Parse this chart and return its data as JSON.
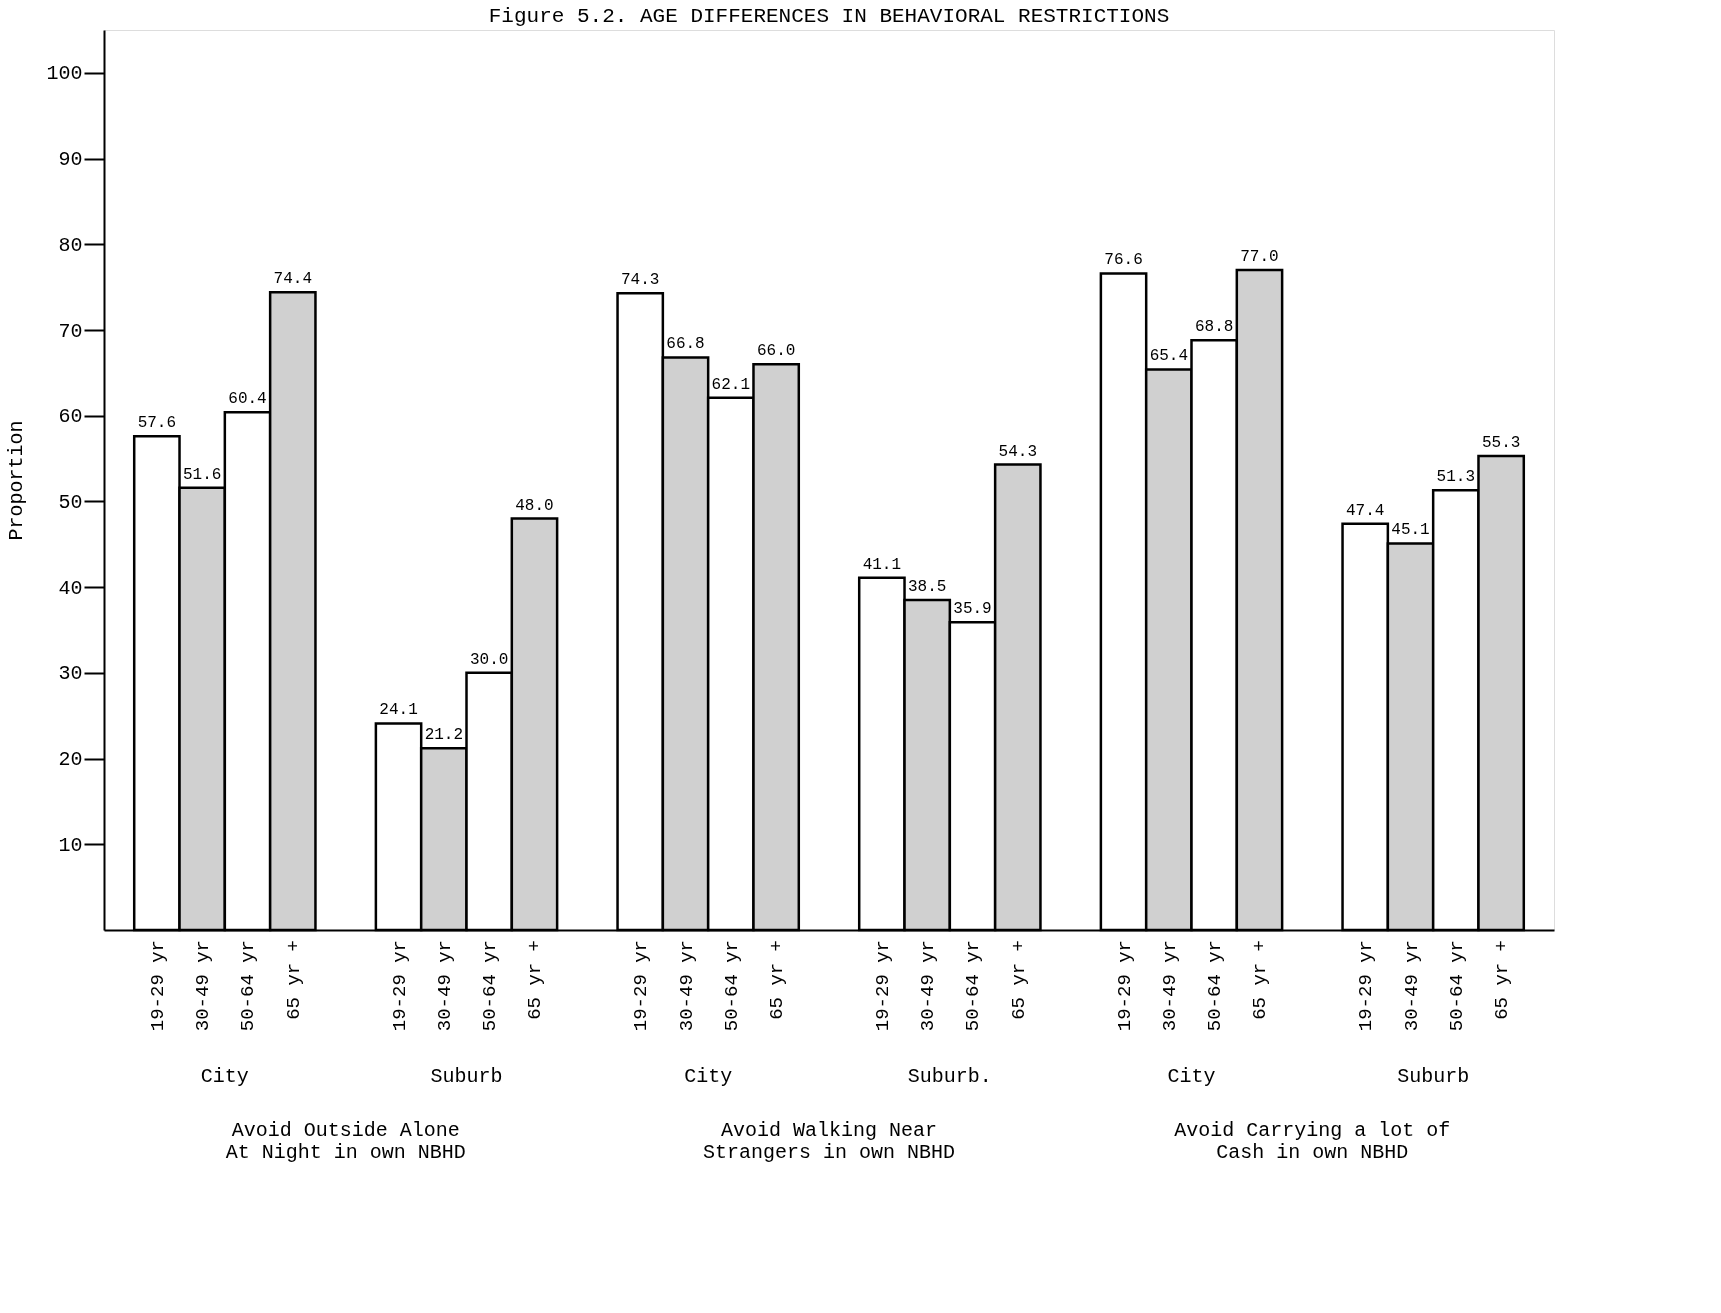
{
  "chart_data": {
    "type": "bar",
    "title": "Figure 5.2. AGE DIFFERENCES IN BEHAVIORAL RESTRICTIONS",
    "ylabel": "Proportion",
    "categories": [
      "City",
      "Suburb",
      "City",
      "Suburb.",
      "City",
      "Suburb"
    ],
    "series": [
      {
        "name": "19-29 yr",
        "color": "#ffffff",
        "values": [
          57.6,
          24.1,
          74.3,
          41.1,
          76.6,
          47.4
        ],
        "value_labels": [
          "57.6",
          "24.1",
          "74.3",
          "41.1",
          "76.6",
          "47.4"
        ]
      },
      {
        "name": "30-49 yr",
        "color": "#d0d0d0",
        "values": [
          51.6,
          21.2,
          66.8,
          38.5,
          65.4,
          45.1
        ],
        "value_labels": [
          "51.6",
          "21.2",
          "66.8",
          "38.5",
          "65.4",
          "45.1"
        ]
      },
      {
        "name": "50-64 yr",
        "color": "#ffffff",
        "values": [
          60.4,
          30.0,
          62.1,
          35.9,
          68.8,
          51.3
        ],
        "value_labels": [
          "60.4",
          "30.0",
          "62.1",
          "35.9",
          "68.8",
          "51.3"
        ]
      },
      {
        "name": "65 yr +",
        "color": "#d0d0d0",
        "values": [
          74.4,
          48.0,
          66.0,
          54.3,
          77.0,
          55.3
        ],
        "value_labels": [
          "74.4",
          "48.0",
          "66.0",
          "54.3",
          "77.0",
          "55.3"
        ]
      }
    ],
    "ylim": [
      0,
      105
    ],
    "yticks": [
      10,
      20,
      30,
      40,
      50,
      60,
      70,
      80,
      90,
      100
    ],
    "grid": false,
    "annotations": [
      "Avoid Outside Alone\nAt Night in own NBHD",
      "Avoid Walking Near\nStrangers in own NBHD",
      "Avoid Carrying a lot of\nCash in own NBHD"
    ]
  }
}
